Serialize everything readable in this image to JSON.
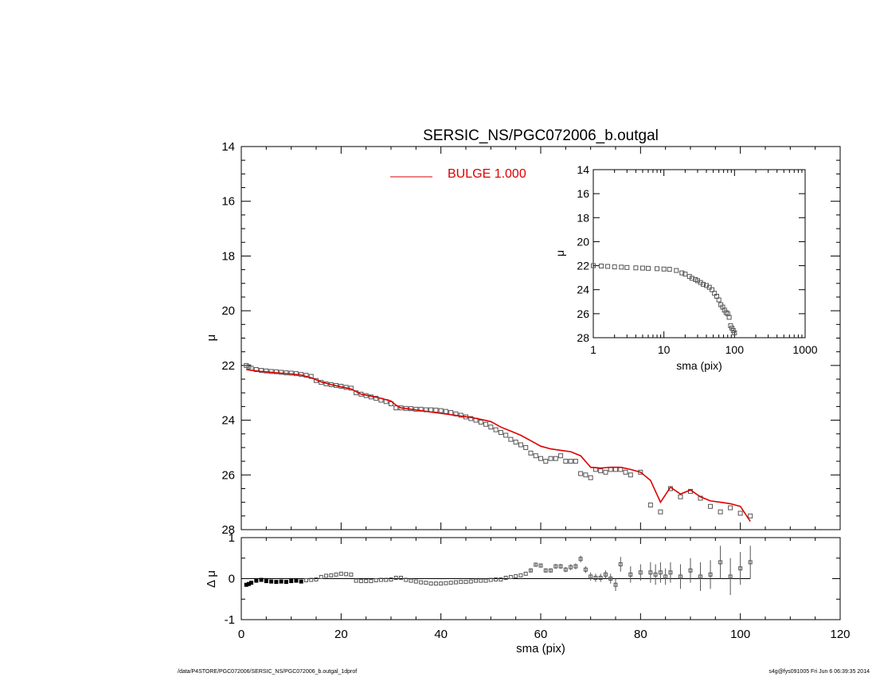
{
  "footer": {
    "left_path": "/data/P4STORE/PGC072006/SERSIC_NS/PGC072006_b.outgal_1dprof",
    "right_stamp": "s4g@fys091005  Fri Jun  6 06:39:35 2014"
  },
  "colors": {
    "model": "#dd0000",
    "data": "#555555",
    "axes": "#000000"
  },
  "chart_data": [
    {
      "id": "main",
      "type": "scatter",
      "title": "SERSIC_NS/PGC072006_b.outgal",
      "xlabel": "",
      "ylabel": "μ",
      "xlim": [
        0,
        120
      ],
      "ylim": [
        28,
        14
      ],
      "y_inverted": true,
      "yticks": [
        14,
        16,
        18,
        20,
        22,
        24,
        26,
        28
      ],
      "legend": {
        "label": "BULGE  1.000",
        "placement": "top-center"
      },
      "series": [
        {
          "name": "",
          "kind": "points",
          "x": [
            1,
            1.5,
            2,
            3,
            4,
            5,
            6,
            7,
            8,
            9,
            10,
            11,
            12,
            13,
            14,
            15,
            16,
            17,
            18,
            19,
            20,
            21,
            22,
            23,
            24,
            25,
            26,
            27,
            28,
            29,
            30,
            31,
            32,
            33,
            34,
            35,
            36,
            37,
            38,
            39,
            40,
            41,
            42,
            43,
            44,
            45,
            46,
            47,
            48,
            49,
            50,
            51,
            52,
            53,
            54,
            55,
            56,
            57,
            58,
            59,
            60,
            61,
            62,
            63,
            64,
            65,
            66,
            67,
            68,
            69,
            70,
            71,
            72,
            73,
            74,
            75,
            76,
            77,
            78,
            80,
            82,
            84,
            86,
            88,
            90,
            92,
            94,
            96,
            98,
            100,
            102
          ],
          "y": [
            22.0,
            22.05,
            22.1,
            22.15,
            22.18,
            22.2,
            22.22,
            22.23,
            22.25,
            22.27,
            22.28,
            22.3,
            22.33,
            22.36,
            22.4,
            22.55,
            22.62,
            22.67,
            22.7,
            22.73,
            22.76,
            22.8,
            22.83,
            23.0,
            23.05,
            23.1,
            23.15,
            23.2,
            23.27,
            23.32,
            23.4,
            23.55,
            23.55,
            23.57,
            23.58,
            23.6,
            23.6,
            23.62,
            23.62,
            23.63,
            23.65,
            23.68,
            23.72,
            23.77,
            23.82,
            23.88,
            23.94,
            24.0,
            24.07,
            24.15,
            24.25,
            24.35,
            24.45,
            24.55,
            24.7,
            24.8,
            24.9,
            25.0,
            25.2,
            25.3,
            25.4,
            25.5,
            25.4,
            25.4,
            25.3,
            25.5,
            25.5,
            25.5,
            25.95,
            26.0,
            26.1,
            25.8,
            25.85,
            25.9,
            25.8,
            25.8,
            25.8,
            25.9,
            26.0,
            25.9,
            27.1,
            27.35,
            26.5,
            26.8,
            26.6,
            26.85,
            27.15,
            27.35,
            27.2,
            27.4,
            27.5
          ]
        },
        {
          "name": "BULGE  1.000",
          "kind": "line",
          "x": [
            1,
            2,
            4,
            6,
            8,
            10,
            12,
            14,
            16,
            18,
            20,
            22,
            24,
            26,
            28,
            30,
            31,
            32,
            34,
            36,
            38,
            40,
            42,
            44,
            46,
            48,
            50,
            52,
            54,
            56,
            58,
            60,
            62,
            64,
            66,
            68,
            70,
            72,
            74,
            76,
            78,
            80,
            82,
            84,
            86,
            88,
            90,
            92,
            94,
            96,
            98,
            100,
            102
          ],
          "y": [
            22.15,
            22.18,
            22.22,
            22.25,
            22.28,
            22.31,
            22.35,
            22.45,
            22.6,
            22.7,
            22.78,
            22.86,
            23.05,
            23.12,
            23.2,
            23.3,
            23.45,
            23.55,
            23.6,
            23.65,
            23.7,
            23.75,
            23.8,
            23.85,
            23.9,
            23.97,
            24.05,
            24.25,
            24.4,
            24.55,
            24.75,
            24.95,
            25.05,
            25.1,
            25.15,
            25.3,
            25.72,
            25.75,
            25.72,
            25.72,
            25.8,
            25.9,
            26.2,
            27.0,
            26.45,
            26.7,
            26.55,
            26.8,
            26.95,
            27.0,
            27.05,
            27.15,
            27.7
          ]
        }
      ]
    },
    {
      "id": "inset",
      "type": "scatter",
      "title": "",
      "xlabel": "sma (pix)",
      "ylabel": "μ",
      "xscale": "log",
      "xlim": [
        1,
        1000
      ],
      "xticks": [
        1,
        10,
        100,
        1000
      ],
      "ylim": [
        28,
        14
      ],
      "yticks": [
        14,
        16,
        18,
        20,
        22,
        24,
        26,
        28
      ],
      "series": [
        {
          "name": "",
          "kind": "points",
          "x": [
            1,
            1.3,
            1.6,
            2,
            2.5,
            3,
            4,
            5,
            6,
            8,
            10,
            12,
            15,
            18,
            20,
            23,
            25,
            28,
            30,
            33,
            36,
            40,
            44,
            48,
            52,
            56,
            60,
            64,
            68,
            72,
            76,
            80,
            84,
            88,
            92,
            96,
            100
          ],
          "y": [
            22.0,
            22.03,
            22.06,
            22.1,
            22.12,
            22.15,
            22.18,
            22.2,
            22.22,
            22.25,
            22.28,
            22.3,
            22.4,
            22.6,
            22.7,
            22.9,
            23.05,
            23.15,
            23.25,
            23.4,
            23.55,
            23.65,
            23.8,
            24.0,
            24.3,
            24.55,
            24.85,
            25.25,
            25.45,
            25.7,
            25.9,
            26.0,
            26.3,
            27.0,
            27.2,
            27.4,
            27.6
          ]
        }
      ]
    },
    {
      "id": "residual",
      "type": "scatter",
      "title": "",
      "xlabel": "sma (pix)",
      "ylabel": "Δ μ",
      "xlim": [
        0,
        120
      ],
      "xticks": [
        0,
        20,
        40,
        60,
        80,
        100,
        120
      ],
      "ylim": [
        -1,
        1
      ],
      "yticks": [
        -1,
        0,
        1
      ],
      "series": [
        {
          "name": "",
          "kind": "points",
          "x": [
            1,
            1.5,
            2,
            3,
            4,
            5,
            6,
            7,
            8,
            9,
            10,
            11,
            12,
            13,
            14,
            15,
            16,
            17,
            18,
            19,
            20,
            21,
            22,
            23,
            24,
            25,
            26,
            27,
            28,
            29,
            30,
            31,
            32,
            33,
            34,
            35,
            36,
            37,
            38,
            39,
            40,
            41,
            42,
            43,
            44,
            45,
            46,
            47,
            48,
            49,
            50,
            51,
            52,
            53,
            54,
            55,
            56,
            57,
            58,
            59,
            60,
            61,
            62,
            63,
            64,
            65,
            66,
            67,
            68,
            69,
            70,
            71,
            72,
            73,
            74,
            75,
            76,
            78,
            80,
            82,
            83,
            84,
            85,
            86,
            88,
            90,
            92,
            94,
            96,
            98,
            100,
            102
          ],
          "y": [
            -0.15,
            -0.13,
            -0.1,
            -0.05,
            -0.03,
            -0.06,
            -0.07,
            -0.08,
            -0.07,
            -0.08,
            -0.06,
            -0.05,
            -0.07,
            -0.04,
            -0.03,
            -0.02,
            0.04,
            0.07,
            0.08,
            0.1,
            0.12,
            0.11,
            0.1,
            -0.05,
            -0.06,
            -0.06,
            -0.06,
            -0.04,
            -0.03,
            -0.03,
            -0.02,
            0.02,
            0.02,
            -0.03,
            -0.05,
            -0.07,
            -0.09,
            -0.1,
            -0.12,
            -0.12,
            -0.12,
            -0.11,
            -0.1,
            -0.09,
            -0.08,
            -0.08,
            -0.07,
            -0.05,
            -0.05,
            -0.05,
            -0.03,
            -0.02,
            -0.02,
            0.02,
            0.04,
            0.06,
            0.08,
            0.12,
            0.2,
            0.34,
            0.32,
            0.2,
            0.2,
            0.3,
            0.3,
            0.22,
            0.28,
            0.3,
            0.48,
            0.22,
            0.05,
            0.02,
            0.02,
            0.1,
            0.0,
            -0.15,
            0.35,
            0.1,
            0.15,
            0.15,
            0.1,
            0.15,
            0.05,
            0.15,
            0.05,
            0.2,
            0.05,
            0.1,
            0.4,
            0.05,
            0.25,
            0.4
          ],
          "err": [
            0.02,
            0.02,
            0.02,
            0.02,
            0.02,
            0.02,
            0.02,
            0.02,
            0.02,
            0.02,
            0.02,
            0.02,
            0.02,
            0.02,
            0.02,
            0.02,
            0.02,
            0.02,
            0.02,
            0.02,
            0.02,
            0.02,
            0.02,
            0.02,
            0.02,
            0.02,
            0.02,
            0.02,
            0.02,
            0.02,
            0.02,
            0.02,
            0.02,
            0.02,
            0.02,
            0.02,
            0.02,
            0.02,
            0.02,
            0.02,
            0.02,
            0.02,
            0.02,
            0.02,
            0.02,
            0.03,
            0.03,
            0.03,
            0.03,
            0.03,
            0.03,
            0.03,
            0.03,
            0.03,
            0.04,
            0.04,
            0.04,
            0.04,
            0.05,
            0.05,
            0.05,
            0.05,
            0.05,
            0.06,
            0.06,
            0.06,
            0.07,
            0.07,
            0.08,
            0.08,
            0.1,
            0.1,
            0.1,
            0.1,
            0.12,
            0.15,
            0.18,
            0.2,
            0.2,
            0.25,
            0.25,
            0.25,
            0.2,
            0.25,
            0.3,
            0.3,
            0.35,
            0.35,
            0.4,
            0.45,
            0.4,
            0.4
          ]
        }
      ]
    }
  ]
}
